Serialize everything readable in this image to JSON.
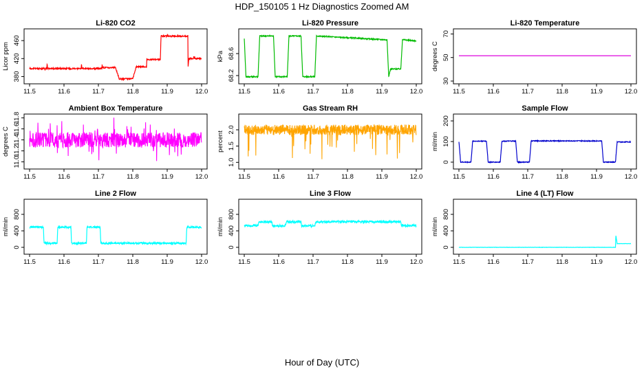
{
  "figure": {
    "title": "HDP_150105  1 Hz Diagnostics Zoomed AM",
    "xlabel": "Hour of Day (UTC)"
  },
  "chart_data": [
    {
      "id": "co2",
      "type": "line",
      "title": "Li-820 CO2",
      "ylabel": "Licor ppm",
      "color": "#ff0000",
      "noise": 1.5,
      "xlim": [
        11.5,
        12.0
      ],
      "xticks": [
        "11.5",
        "11.6",
        "11.7",
        "11.8",
        "11.9",
        "12.0"
      ],
      "ylim": [
        370,
        480
      ],
      "yticks": [
        "380",
        "420",
        "460"
      ],
      "x": [
        11.5,
        11.55,
        11.551,
        11.552,
        11.65,
        11.651,
        11.652,
        11.71,
        11.711,
        11.712,
        11.75,
        11.76,
        11.761,
        11.8,
        11.81,
        11.84,
        11.84,
        11.88,
        11.882,
        11.95,
        11.96,
        11.96,
        11.963,
        11.97,
        12.0
      ],
      "y": [
        398,
        398,
        410,
        398,
        398,
        410,
        398,
        398,
        410,
        400,
        400,
        375,
        375,
        375,
        402,
        402,
        418,
        418,
        470,
        470,
        470,
        395,
        420,
        420,
        420
      ]
    },
    {
      "id": "pressure",
      "type": "line",
      "title": "Li-820 Pressure",
      "ylabel": "kPa",
      "color": "#00bb00",
      "noise": 0.01,
      "xlim": [
        11.5,
        12.0
      ],
      "xticks": [
        "11.5",
        "11.6",
        "11.7",
        "11.8",
        "11.9",
        "12.0"
      ],
      "ylim": [
        68.1,
        69.0
      ],
      "yticks": [
        "68.2",
        "68.6"
      ],
      "x": [
        11.5,
        11.505,
        11.54,
        11.545,
        11.585,
        11.59,
        11.625,
        11.63,
        11.665,
        11.67,
        11.705,
        11.71,
        11.915,
        11.92,
        11.925,
        11.955,
        11.96,
        11.965,
        12.0
      ],
      "y": [
        68.88,
        68.18,
        68.18,
        68.92,
        68.92,
        68.18,
        68.18,
        68.92,
        68.92,
        68.18,
        68.18,
        68.92,
        68.85,
        68.18,
        68.32,
        68.32,
        68.86,
        68.85,
        68.83
      ]
    },
    {
      "id": "temperature",
      "type": "line",
      "title": "Li-820 Temperature",
      "ylabel": "degrees C",
      "color": "#dd00dd",
      "noise": 0,
      "xlim": [
        11.5,
        12.0
      ],
      "xticks": [
        "11.5",
        "11.6",
        "11.7",
        "11.8",
        "11.9",
        "12.0"
      ],
      "ylim": [
        30,
        72
      ],
      "yticks": [
        "30",
        "50",
        "70"
      ],
      "x": [
        11.5,
        12.0
      ],
      "y": [
        51.5,
        51.5
      ]
    },
    {
      "id": "ambient",
      "type": "line",
      "title": "Ambient Box Temperature",
      "ylabel": "degrees C",
      "color": "#ff00ff",
      "noise": 0.14,
      "xlim": [
        11.5,
        12.0
      ],
      "xticks": [
        "11.5",
        "11.6",
        "11.7",
        "11.8",
        "11.9",
        "12.0"
      ],
      "ylim": [
        10.92,
        11.82
      ],
      "yticks": [
        "11.0",
        "11.2",
        "11.4",
        "11.6",
        "11.8"
      ],
      "x": [
        11.5,
        12.0
      ],
      "y": [
        11.4,
        11.4
      ]
    },
    {
      "id": "rh",
      "type": "line",
      "title": "Gas Stream RH",
      "ylabel": "percent",
      "color": "#ffa500",
      "noise": 0.16,
      "xlim": [
        11.5,
        12.0
      ],
      "xticks": [
        "11.5",
        "11.6",
        "11.7",
        "11.8",
        "11.9",
        "12.0"
      ],
      "ylim": [
        0.88,
        2.4
      ],
      "yticks": [
        "1.0",
        "1.5",
        "2.0"
      ],
      "x": [
        11.5,
        12.0
      ],
      "y": [
        2.0,
        2.0
      ]
    },
    {
      "id": "sample_flow",
      "type": "line",
      "title": "Sample Flow",
      "ylabel": "ml/min",
      "color": "#0000cc",
      "noise": 2,
      "xlim": [
        11.5,
        12.0
      ],
      "xticks": [
        "11.5",
        "11.6",
        "11.7",
        "11.8",
        "11.9",
        "12.0"
      ],
      "ylim": [
        -20,
        220
      ],
      "yticks": [
        "0",
        "100",
        "200"
      ],
      "x": [
        11.5,
        11.505,
        11.535,
        11.54,
        11.58,
        11.585,
        11.62,
        11.625,
        11.665,
        11.67,
        11.705,
        11.71,
        11.915,
        11.92,
        11.955,
        11.96,
        12.0
      ],
      "y": [
        100,
        0,
        0,
        102,
        102,
        0,
        0,
        102,
        102,
        0,
        0,
        103,
        103,
        0,
        0,
        98,
        98
      ]
    },
    {
      "id": "line2",
      "type": "line",
      "title": "Line 2 Flow",
      "ylabel": "ml/min",
      "color": "#00ffff",
      "noise": 22,
      "xlim": [
        11.5,
        12.0
      ],
      "xticks": [
        "11.5",
        "11.6",
        "11.7",
        "11.8",
        "11.9",
        "12.0"
      ],
      "ylim": [
        -100,
        1100
      ],
      "yticks": [
        "0",
        "400",
        "800"
      ],
      "x": [
        11.5,
        11.54,
        11.542,
        11.58,
        11.582,
        11.62,
        11.622,
        11.665,
        11.667,
        11.705,
        11.707,
        11.955,
        11.957,
        12.0
      ],
      "y": [
        490,
        490,
        100,
        100,
        490,
        490,
        100,
        100,
        490,
        490,
        100,
        100,
        490,
        490
      ]
    },
    {
      "id": "line3",
      "type": "line",
      "title": "Line 3 Flow",
      "ylabel": "ml/min",
      "color": "#00ffff",
      "noise": 28,
      "xlim": [
        11.5,
        12.0
      ],
      "xticks": [
        "11.5",
        "11.6",
        "11.7",
        "11.8",
        "11.9",
        "12.0"
      ],
      "ylim": [
        -100,
        1100
      ],
      "yticks": [
        "0",
        "400",
        "800"
      ],
      "x": [
        11.5,
        11.54,
        11.542,
        11.58,
        11.582,
        11.62,
        11.622,
        11.665,
        11.667,
        11.705,
        11.707,
        11.955,
        11.957,
        12.0
      ],
      "y": [
        530,
        530,
        620,
        620,
        520,
        520,
        620,
        620,
        520,
        520,
        620,
        620,
        530,
        530
      ]
    },
    {
      "id": "line4",
      "type": "line",
      "title": "Line 4 (LT) Flow",
      "ylabel": "ml/min",
      "color": "#00ffff",
      "noise": 3,
      "xlim": [
        11.5,
        12.0
      ],
      "xticks": [
        "11.5",
        "11.6",
        "11.7",
        "11.8",
        "11.9",
        "12.0"
      ],
      "ylim": [
        -100,
        1100
      ],
      "yticks": [
        "0",
        "400",
        "800"
      ],
      "x": [
        11.5,
        11.955,
        11.956,
        11.96,
        11.961,
        12.0
      ],
      "y": [
        0,
        0,
        300,
        90,
        90,
        90
      ]
    }
  ]
}
